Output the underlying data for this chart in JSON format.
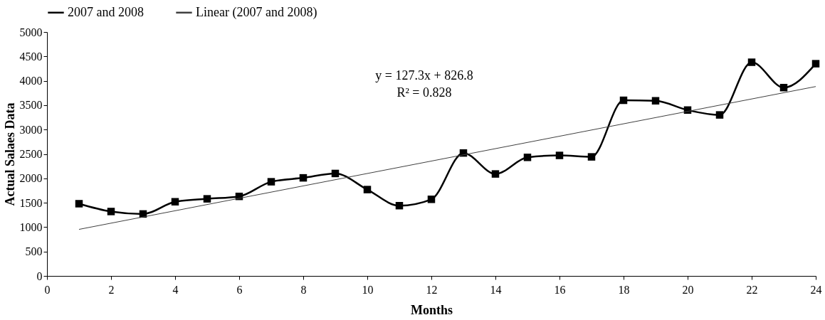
{
  "chart_data": {
    "type": "line",
    "xlabel": "Months",
    "ylabel": "Actual Salaes Data",
    "x": [
      1,
      2,
      3,
      4,
      5,
      6,
      7,
      8,
      9,
      10,
      11,
      12,
      13,
      14,
      15,
      16,
      17,
      18,
      19,
      20,
      21,
      22,
      23,
      24
    ],
    "series": [
      {
        "name": "2007 and 2008",
        "color": "#000000",
        "marker": "square",
        "values": [
          1480,
          1320,
          1270,
          1520,
          1580,
          1630,
          1930,
          2010,
          2100,
          1770,
          1440,
          1570,
          2520,
          2090,
          2430,
          2470,
          2440,
          3600,
          3590,
          3400,
          3300,
          4380,
          3860,
          4350
        ]
      },
      {
        "name": "Linear (2007 and 2008)",
        "type": "line",
        "color": "#404040",
        "marker": "none",
        "x": [
          1,
          24
        ],
        "values": [
          954,
          3882
        ]
      }
    ],
    "annotations": [
      "y = 127.3x + 826.8",
      "R² = 0.828"
    ],
    "xlim": [
      0,
      24
    ],
    "xticks": [
      0,
      2,
      4,
      6,
      8,
      10,
      12,
      14,
      16,
      18,
      20,
      22,
      24
    ],
    "ylim": [
      0,
      5000
    ],
    "yticks": [
      0,
      500,
      1000,
      1500,
      2000,
      2500,
      3000,
      3500,
      4000,
      4500,
      5000
    ],
    "grid": false,
    "legend": "top"
  }
}
